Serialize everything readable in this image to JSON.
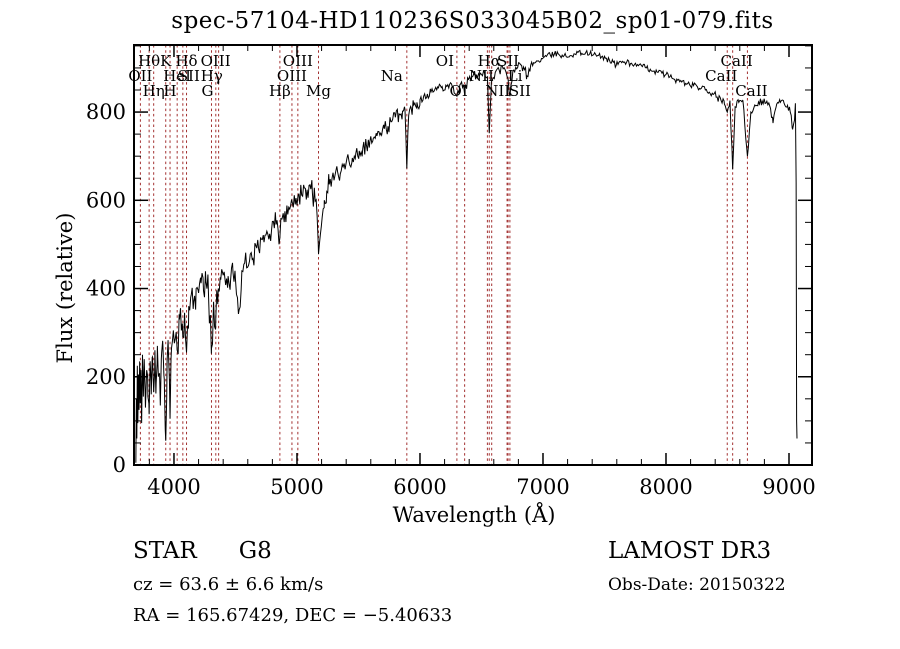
{
  "title": "spec-57104-HD110236S033045B02_sp01-079.fits",
  "footer": {
    "class_label": "STAR",
    "subclass": "G8",
    "cz_line": "cz = 63.6 ± 6.6 km/s",
    "radec_line": "RA = 165.67429, DEC =  −5.40633",
    "survey": "LAMOST DR3",
    "obs_date_line": "Obs-Date: 20150322"
  },
  "chart_data": {
    "type": "line",
    "title": "spec-57104-HD110236S033045B02_sp01-079.fits",
    "xlabel": "Wavelength (Å)",
    "ylabel": "Flux (relative)",
    "xlim": [
      3675,
      9187
    ],
    "ylim": [
      0,
      952
    ],
    "x_major_ticks": [
      4000,
      5000,
      6000,
      7000,
      8000,
      9000
    ],
    "x_minor_step": 200,
    "y_major_ticks": [
      0,
      200,
      400,
      600,
      800
    ],
    "y_minor_step": 50,
    "grid": false,
    "legend": "none",
    "colors": {
      "curve": "#000000",
      "line_marker": "#a33131",
      "text": "#000000"
    },
    "spectral_lines": [
      {
        "label": "Hθ",
        "wavelength": 3798,
        "row": 1,
        "dx": 0
      },
      {
        "label": "K",
        "wavelength": 3933,
        "row": 1,
        "dx": 0
      },
      {
        "label": "Hδ",
        "wavelength": 4102,
        "row": 1,
        "dx": 0
      },
      {
        "label": "OIII",
        "wavelength": 4363,
        "row": 1,
        "dx": -3
      },
      {
        "label": "OIII",
        "wavelength": 5007,
        "row": 1,
        "dx": 0
      },
      {
        "label": "OI",
        "wavelength": 6300,
        "row": 1,
        "dx": -12
      },
      {
        "label": "Hα",
        "wavelength": 6563,
        "row": 1,
        "dx": 0
      },
      {
        "label": "SII",
        "wavelength": 6716,
        "row": 1,
        "dx": 0
      },
      {
        "label": "CaII",
        "wavelength": 8542,
        "row": 1,
        "dx": 4
      },
      {
        "label": "OII",
        "wavelength": 3727,
        "row": 2,
        "dx": 0
      },
      {
        "label": "HeI",
        "wavelength": 4026,
        "row": 2,
        "dx": 0
      },
      {
        "label": "SII",
        "wavelength": 4072,
        "row": 2,
        "dx": 6
      },
      {
        "label": "Hγ",
        "wavelength": 4340,
        "row": 2,
        "dx": -4
      },
      {
        "label": "OIII",
        "wavelength": 4959,
        "row": 2,
        "dx": 0
      },
      {
        "label": "Na",
        "wavelength": 5893,
        "row": 2,
        "dx": -15
      },
      {
        "label": "NII",
        "wavelength": 6548,
        "row": 2,
        "dx": -6
      },
      {
        "label": "Li",
        "wavelength": 6708,
        "row": 2,
        "dx": 8
      },
      {
        "label": "CaII",
        "wavelength": 8498,
        "row": 2,
        "dx": -6
      },
      {
        "label": "Hη",
        "wavelength": 3835,
        "row": 3,
        "dx": 0
      },
      {
        "label": "H",
        "wavelength": 3968,
        "row": 3,
        "dx": 0
      },
      {
        "label": "G",
        "wavelength": 4305,
        "row": 3,
        "dx": -4
      },
      {
        "label": "Hβ",
        "wavelength": 4861,
        "row": 3,
        "dx": 0
      },
      {
        "label": "Mg",
        "wavelength": 5175,
        "row": 3,
        "dx": 0
      },
      {
        "label": "OI",
        "wavelength": 6363,
        "row": 3,
        "dx": -6
      },
      {
        "label": "NII",
        "wavelength": 6583,
        "row": 3,
        "dx": 6
      },
      {
        "label": "SII",
        "wavelength": 6731,
        "row": 3,
        "dx": 10
      },
      {
        "label": "CaII",
        "wavelength": 8662,
        "row": 3,
        "dx": 4
      }
    ],
    "series": [
      {
        "name": "spectrum",
        "points": [
          [
            3690,
            5
          ],
          [
            3694,
            150
          ],
          [
            3698,
            60
          ],
          [
            3702,
            225
          ],
          [
            3706,
            95
          ],
          [
            3711,
            205
          ],
          [
            3716,
            125
          ],
          [
            3721,
            235
          ],
          [
            3726,
            140
          ],
          [
            3731,
            215
          ],
          [
            3737,
            95
          ],
          [
            3744,
            250
          ],
          [
            3751,
            155
          ],
          [
            3758,
            240
          ],
          [
            3768,
            130
          ],
          [
            3778,
            215
          ],
          [
            3788,
            155
          ],
          [
            3798,
            115
          ],
          [
            3806,
            235
          ],
          [
            3815,
            160
          ],
          [
            3825,
            245
          ],
          [
            3835,
            165
          ],
          [
            3845,
            260
          ],
          [
            3855,
            185
          ],
          [
            3865,
            270
          ],
          [
            3875,
            205
          ],
          [
            3889,
            135
          ],
          [
            3900,
            255
          ],
          [
            3910,
            270
          ],
          [
            3921,
            195
          ],
          [
            3933,
            55
          ],
          [
            3944,
            235
          ],
          [
            3955,
            255
          ],
          [
            3968,
            105
          ],
          [
            3980,
            265
          ],
          [
            3995,
            305
          ],
          [
            4010,
            285
          ],
          [
            4026,
            260
          ],
          [
            4045,
            330
          ],
          [
            4060,
            305
          ],
          [
            4072,
            290
          ],
          [
            4086,
            345
          ],
          [
            4102,
            255
          ],
          [
            4120,
            360
          ],
          [
            4140,
            385
          ],
          [
            4160,
            370
          ],
          [
            4180,
            400
          ],
          [
            4200,
            390
          ],
          [
            4220,
            412
          ],
          [
            4240,
            395
          ],
          [
            4260,
            415
          ],
          [
            4280,
            392
          ],
          [
            4305,
            265
          ],
          [
            4322,
            370
          ],
          [
            4340,
            332
          ],
          [
            4360,
            400
          ],
          [
            4380,
            420
          ],
          [
            4400,
            430
          ],
          [
            4420,
            408
          ],
          [
            4440,
            428
          ],
          [
            4460,
            418
          ],
          [
            4480,
            436
          ],
          [
            4500,
            420
          ],
          [
            4530,
            352
          ],
          [
            4552,
            440
          ],
          [
            4575,
            458
          ],
          [
            4598,
            448
          ],
          [
            4620,
            478
          ],
          [
            4642,
            468
          ],
          [
            4665,
            498
          ],
          [
            4688,
            490
          ],
          [
            4710,
            512
          ],
          [
            4732,
            505
          ],
          [
            4755,
            530
          ],
          [
            4778,
            524
          ],
          [
            4800,
            552
          ],
          [
            4830,
            545
          ],
          [
            4861,
            515
          ],
          [
            4880,
            560
          ],
          [
            4902,
            575
          ],
          [
            4925,
            568
          ],
          [
            4948,
            588
          ],
          [
            4970,
            584
          ],
          [
            4992,
            605
          ],
          [
            5015,
            615
          ],
          [
            5038,
            612
          ],
          [
            5060,
            628
          ],
          [
            5082,
            624
          ],
          [
            5105,
            635
          ],
          [
            5125,
            618
          ],
          [
            5148,
            598
          ],
          [
            5165,
            555
          ],
          [
            5175,
            478
          ],
          [
            5190,
            522
          ],
          [
            5205,
            562
          ],
          [
            5222,
            600
          ],
          [
            5242,
            620
          ],
          [
            5262,
            636
          ],
          [
            5285,
            650
          ],
          [
            5308,
            655
          ],
          [
            5330,
            665
          ],
          [
            5352,
            660
          ],
          [
            5375,
            676
          ],
          [
            5398,
            682
          ],
          [
            5422,
            690
          ],
          [
            5450,
            696
          ],
          [
            5478,
            706
          ],
          [
            5506,
            712
          ],
          [
            5535,
            718
          ],
          [
            5564,
            726
          ],
          [
            5592,
            732
          ],
          [
            5620,
            740
          ],
          [
            5650,
            746
          ],
          [
            5680,
            752
          ],
          [
            5710,
            762
          ],
          [
            5740,
            768
          ],
          [
            5770,
            778
          ],
          [
            5800,
            788
          ],
          [
            5830,
            796
          ],
          [
            5858,
            802
          ],
          [
            5878,
            806
          ],
          [
            5893,
            672
          ],
          [
            5908,
            792
          ],
          [
            5928,
            810
          ],
          [
            5950,
            816
          ],
          [
            5975,
            822
          ],
          [
            6000,
            828
          ],
          [
            6030,
            836
          ],
          [
            6060,
            841
          ],
          [
            6090,
            846
          ],
          [
            6120,
            851
          ],
          [
            6150,
            855
          ],
          [
            6180,
            858
          ],
          [
            6210,
            861
          ],
          [
            6240,
            862
          ],
          [
            6270,
            858
          ],
          [
            6300,
            836
          ],
          [
            6330,
            864
          ],
          [
            6363,
            850
          ],
          [
            6396,
            874
          ],
          [
            6428,
            880
          ],
          [
            6460,
            885
          ],
          [
            6492,
            888
          ],
          [
            6524,
            890
          ],
          [
            6548,
            880
          ],
          [
            6563,
            752
          ],
          [
            6580,
            868
          ],
          [
            6612,
            890
          ],
          [
            6644,
            895
          ],
          [
            6676,
            898
          ],
          [
            6700,
            890
          ],
          [
            6716,
            876
          ],
          [
            6731,
            836
          ],
          [
            6762,
            895
          ],
          [
            6794,
            901
          ],
          [
            6826,
            906
          ],
          [
            6850,
            896
          ],
          [
            6870,
            882
          ],
          [
            6900,
            906
          ],
          [
            6932,
            911
          ],
          [
            6964,
            916
          ],
          [
            6996,
            921
          ],
          [
            7028,
            926
          ],
          [
            7060,
            929
          ],
          [
            7092,
            931
          ],
          [
            7124,
            932
          ],
          [
            7156,
            929
          ],
          [
            7188,
            926
          ],
          [
            7220,
            928
          ],
          [
            7252,
            932
          ],
          [
            7284,
            935
          ],
          [
            7316,
            933
          ],
          [
            7348,
            935
          ],
          [
            7380,
            932
          ],
          [
            7412,
            930
          ],
          [
            7444,
            928
          ],
          [
            7476,
            925
          ],
          [
            7508,
            922
          ],
          [
            7540,
            918
          ],
          [
            7572,
            913
          ],
          [
            7594,
            905
          ],
          [
            7616,
            912
          ],
          [
            7648,
            915
          ],
          [
            7680,
            913
          ],
          [
            7712,
            910
          ],
          [
            7744,
            908
          ],
          [
            7776,
            905
          ],
          [
            7808,
            903
          ],
          [
            7840,
            900
          ],
          [
            7872,
            897
          ],
          [
            7904,
            893
          ],
          [
            7936,
            890
          ],
          [
            7968,
            888
          ],
          [
            8000,
            885
          ],
          [
            8032,
            880
          ],
          [
            8064,
            875
          ],
          [
            8096,
            872
          ],
          [
            8128,
            868
          ],
          [
            8160,
            865
          ],
          [
            8192,
            862
          ],
          [
            8224,
            860
          ],
          [
            8256,
            857
          ],
          [
            8288,
            854
          ],
          [
            8320,
            850
          ],
          [
            8352,
            845
          ],
          [
            8384,
            840
          ],
          [
            8416,
            834
          ],
          [
            8448,
            826
          ],
          [
            8475,
            818
          ],
          [
            8498,
            800
          ],
          [
            8520,
            826
          ],
          [
            8542,
            670
          ],
          [
            8562,
            812
          ],
          [
            8592,
            822
          ],
          [
            8625,
            826
          ],
          [
            8662,
            700
          ],
          [
            8690,
            800
          ],
          [
            8722,
            816
          ],
          [
            8752,
            823
          ],
          [
            8782,
            825
          ],
          [
            8812,
            820
          ],
          [
            8842,
            815
          ],
          [
            8870,
            775
          ],
          [
            8900,
            818
          ],
          [
            8930,
            822
          ],
          [
            8960,
            820
          ],
          [
            8988,
            815
          ],
          [
            9010,
            800
          ],
          [
            9030,
            762
          ],
          [
            9045,
            782
          ],
          [
            9052,
            820
          ],
          [
            9058,
            640
          ],
          [
            9062,
            100
          ],
          [
            9065,
            60
          ]
        ]
      }
    ],
    "noise_regions": [
      [
        3690,
        4400,
        42
      ],
      [
        4400,
        5300,
        27
      ],
      [
        5300,
        6000,
        19
      ],
      [
        6000,
        6900,
        11
      ],
      [
        6900,
        8400,
        7
      ],
      [
        8400,
        9045,
        9
      ],
      [
        9045,
        9065,
        3
      ]
    ]
  }
}
